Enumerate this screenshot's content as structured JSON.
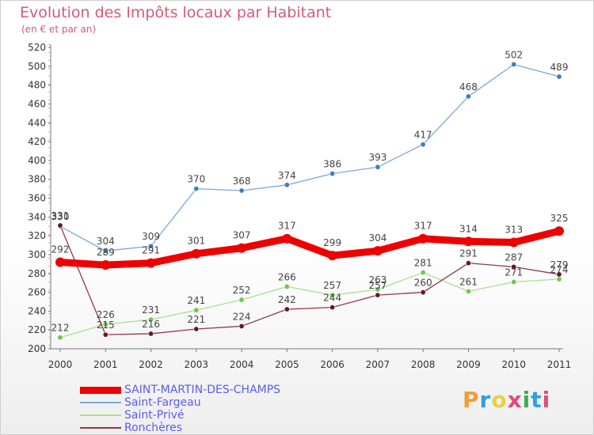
{
  "header": {
    "title": "Evolution des Impôts locaux par Habitant",
    "subtitle": "(en € et par an)"
  },
  "logo": {
    "text": "Proxiti",
    "colors": [
      "#f39c34",
      "#2f9fe0",
      "#e8d23c",
      "#e34a7c",
      "#37b24d",
      "#2f9fe0",
      "#e34a7c"
    ]
  },
  "chart_data": {
    "type": "line",
    "title": "Evolution des Impôts locaux par Habitant",
    "subtitle": "(en € et par an)",
    "xlabel": "",
    "ylabel": "",
    "x": [
      "2000",
      "2001",
      "2002",
      "2003",
      "2004",
      "2005",
      "2006",
      "2007",
      "2008",
      "2009",
      "2010",
      "2011"
    ],
    "ylim": [
      200,
      520
    ],
    "yticks": [
      200,
      220,
      240,
      260,
      280,
      300,
      320,
      340,
      360,
      380,
      400,
      420,
      440,
      460,
      480,
      500,
      520
    ],
    "grid": false,
    "legend_position": "bottom-left",
    "series": [
      {
        "name": "SAINT-MARTIN-DES-CHAMPS",
        "color": "#ee0000",
        "marker": "#ee0000",
        "emphasis": true,
        "values": [
          292,
          289,
          291,
          301,
          307,
          317,
          299,
          304,
          317,
          314,
          313,
          325
        ]
      },
      {
        "name": "Saint-Fargeau",
        "color": "#7aa8d8",
        "marker": "#3b7fc4",
        "emphasis": false,
        "values": [
          330,
          304,
          309,
          370,
          368,
          374,
          386,
          393,
          417,
          468,
          502,
          489
        ]
      },
      {
        "name": "Saint-Privé",
        "color": "#a8e090",
        "marker": "#6cc84c",
        "emphasis": false,
        "values": [
          212,
          226,
          231,
          241,
          252,
          266,
          257,
          263,
          281,
          261,
          271,
          274
        ]
      },
      {
        "name": "Ronchères",
        "color": "#8c3a4a",
        "marker": "#6a1520",
        "emphasis": false,
        "values": [
          331,
          215,
          216,
          221,
          224,
          242,
          244,
          257,
          260,
          291,
          287,
          279
        ]
      }
    ]
  }
}
